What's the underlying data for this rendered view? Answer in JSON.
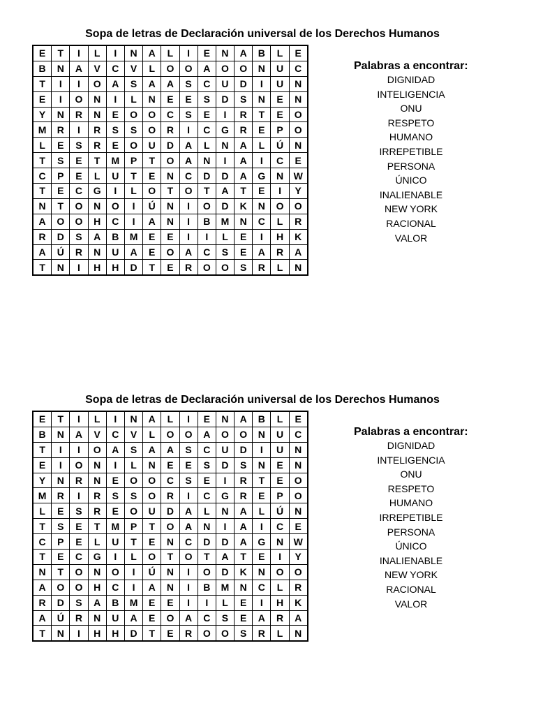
{
  "puzzle": {
    "title": "Sopa de letras de Declaración universal de los Derechos Humanos",
    "words_title": "Palabras a encontrar:",
    "grid": [
      [
        "E",
        "T",
        "I",
        "L",
        "I",
        "N",
        "A",
        "L",
        "I",
        "E",
        "N",
        "A",
        "B",
        "L",
        "E"
      ],
      [
        "B",
        "N",
        "A",
        "V",
        "C",
        "V",
        "L",
        "O",
        "O",
        "A",
        "O",
        "O",
        "N",
        "U",
        "C"
      ],
      [
        "T",
        "I",
        "I",
        "O",
        "A",
        "S",
        "A",
        "A",
        "S",
        "C",
        "U",
        "D",
        "I",
        "U",
        "N"
      ],
      [
        "E",
        "I",
        "O",
        "N",
        "I",
        "L",
        "N",
        "E",
        "E",
        "S",
        "D",
        "S",
        "N",
        "E",
        "N"
      ],
      [
        "Y",
        "N",
        "R",
        "N",
        "E",
        "O",
        "O",
        "C",
        "S",
        "E",
        "I",
        "R",
        "T",
        "E",
        "O"
      ],
      [
        "M",
        "R",
        "I",
        "R",
        "S",
        "S",
        "O",
        "R",
        "I",
        "C",
        "G",
        "R",
        "E",
        "P",
        "O"
      ],
      [
        "L",
        "E",
        "S",
        "R",
        "E",
        "O",
        "U",
        "D",
        "A",
        "L",
        "N",
        "A",
        "L",
        "Ú",
        "N"
      ],
      [
        "T",
        "S",
        "E",
        "T",
        "M",
        "P",
        "T",
        "O",
        "A",
        "N",
        "I",
        "A",
        "I",
        "C",
        "E"
      ],
      [
        "C",
        "P",
        "E",
        "L",
        "U",
        "T",
        "E",
        "N",
        "C",
        "D",
        "D",
        "A",
        "G",
        "N",
        "W"
      ],
      [
        "T",
        "E",
        "C",
        "G",
        "I",
        "L",
        "O",
        "T",
        "O",
        "T",
        "A",
        "T",
        "E",
        "I",
        "Y"
      ],
      [
        "N",
        "T",
        "O",
        "N",
        "O",
        "I",
        "Ú",
        "N",
        "I",
        "O",
        "D",
        "K",
        "N",
        "O",
        "O"
      ],
      [
        "A",
        "O",
        "O",
        "H",
        "C",
        "I",
        "A",
        "N",
        "I",
        "B",
        "M",
        "N",
        "C",
        "L",
        "R"
      ],
      [
        "R",
        "D",
        "S",
        "A",
        "B",
        "M",
        "E",
        "E",
        "I",
        "I",
        "L",
        "E",
        "I",
        "H",
        "K"
      ],
      [
        "A",
        "Ú",
        "R",
        "N",
        "U",
        "A",
        "E",
        "O",
        "A",
        "C",
        "S",
        "E",
        "A",
        "R",
        "A"
      ],
      [
        "T",
        "N",
        "I",
        "H",
        "H",
        "D",
        "T",
        "E",
        "R",
        "O",
        "O",
        "S",
        "R",
        "L",
        "N"
      ]
    ],
    "words": [
      "DIGNIDAD",
      "INTELIGENCIA",
      "ONU",
      "RESPETO",
      "HUMANO",
      "IRREPETIBLE",
      "PERSONA",
      "ÚNICO",
      "INALIENABLE",
      "NEW YORK",
      "RACIONAL",
      "VALOR"
    ]
  }
}
